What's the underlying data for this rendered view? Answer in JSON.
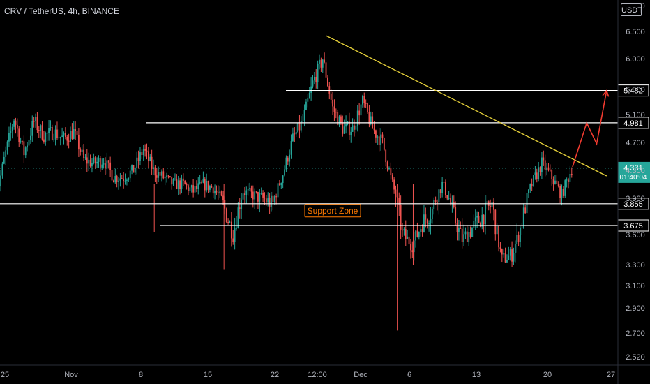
{
  "header": {
    "symbol_title": "CRV / TetherUS, 4h, BINANCE",
    "currency": "USDT"
  },
  "colors": {
    "background": "#000000",
    "up": "#26a69a",
    "down": "#ef5350",
    "trendline": "#e8d23a",
    "level_line": "#ffffff",
    "projection": "#f23b30",
    "support_zone_border": "#ff7a00",
    "price_badge": "#26a69a"
  },
  "chart_data": {
    "type": "candlestick",
    "instrument": "CRV / TetherUS",
    "timeframe": "4h",
    "exchange": "BINANCE",
    "price_axis": {
      "ticks": [
        "7.000",
        "6.500",
        "6.000",
        "5.500",
        "5.100",
        "4.700",
        "4.300",
        "3.900",
        "3.600",
        "3.300",
        "3.100",
        "2.900",
        "2.700",
        "2.520"
      ]
    },
    "time_axis": {
      "ticks": [
        "25",
        "Nov",
        "8",
        "15",
        "22",
        "12:00",
        "Dec",
        "6",
        "13",
        "20",
        "27"
      ]
    },
    "horizontal_levels": [
      {
        "value": 5.482,
        "label": "5.482"
      },
      {
        "value": 4.981,
        "label": "4.981"
      },
      {
        "value": 3.855,
        "label": "3.855"
      },
      {
        "value": 3.675,
        "label": "3.675"
      }
    ],
    "current_price": {
      "value": 4.331,
      "label": "4.331",
      "countdown": "01:40:04"
    },
    "annotations": [
      {
        "type": "label",
        "text": "Support Zone"
      },
      {
        "type": "trendline",
        "from": {
          "date": "Nov 26",
          "price": 6.42
        },
        "to": {
          "date": "Dec 24",
          "price": 4.22
        }
      },
      {
        "type": "projection",
        "path": [
          {
            "date": "Dec 21",
            "price": 4.35
          },
          {
            "date": "Dec 22",
            "price": 4.98
          },
          {
            "date": "Dec 23",
            "price": 4.68
          },
          {
            "date": "Dec 24",
            "price": 5.48
          }
        ]
      }
    ],
    "price_path": [
      {
        "date": "Oct 24",
        "price": 3.75
      },
      {
        "date": "Oct 25",
        "price": 4.45
      },
      {
        "date": "Oct 26",
        "price": 5.05
      },
      {
        "date": "Oct 27",
        "price": 4.55
      },
      {
        "date": "Oct 28",
        "price": 5.0
      },
      {
        "date": "Oct 29",
        "price": 4.8
      },
      {
        "date": "Oct 30",
        "price": 4.85
      },
      {
        "date": "Oct 31",
        "price": 4.75
      },
      {
        "date": "Nov 1",
        "price": 4.85
      },
      {
        "date": "Nov 2",
        "price": 4.45
      },
      {
        "date": "Nov 3",
        "price": 4.4
      },
      {
        "date": "Nov 4",
        "price": 4.45
      },
      {
        "date": "Nov 5",
        "price": 4.2
      },
      {
        "date": "Nov 6",
        "price": 4.2
      },
      {
        "date": "Nov 7",
        "price": 4.3
      },
      {
        "date": "Nov 8",
        "price": 4.6
      },
      {
        "date": "Nov 9",
        "price": 4.3
      },
      {
        "date": "Nov 10",
        "price": 4.2
      },
      {
        "date": "Nov 11",
        "price": 4.1
      },
      {
        "date": "Nov 12",
        "price": 4.1
      },
      {
        "date": "Nov 13",
        "price": 4.0
      },
      {
        "date": "Nov 14",
        "price": 4.1
      },
      {
        "date": "Nov 15",
        "price": 4.05
      },
      {
        "date": "Nov 16",
        "price": 3.85
      },
      {
        "date": "Nov 17",
        "price": 3.6
      },
      {
        "date": "Nov 18",
        "price": 4.0
      },
      {
        "date": "Nov 19",
        "price": 3.95
      },
      {
        "date": "Nov 20",
        "price": 3.9
      },
      {
        "date": "Nov 21",
        "price": 3.85
      },
      {
        "date": "Nov 22",
        "price": 4.25
      },
      {
        "date": "Nov 23",
        "price": 4.75
      },
      {
        "date": "Nov 24",
        "price": 5.0
      },
      {
        "date": "Nov 25",
        "price": 5.6
      },
      {
        "date": "Nov 26",
        "price": 6.0
      },
      {
        "date": "Nov 27",
        "price": 5.2
      },
      {
        "date": "Nov 28",
        "price": 4.9
      },
      {
        "date": "Nov 29",
        "price": 4.9
      },
      {
        "date": "Nov 30",
        "price": 5.3
      },
      {
        "date": "Dec 1",
        "price": 4.9
      },
      {
        "date": "Dec 2",
        "price": 4.7
      },
      {
        "date": "Dec 3",
        "price": 4.1
      },
      {
        "date": "Dec 4",
        "price": 3.6
      },
      {
        "date": "Dec 5",
        "price": 3.5
      },
      {
        "date": "Dec 6",
        "price": 3.7
      },
      {
        "date": "Dec 7",
        "price": 3.8
      },
      {
        "date": "Dec 8",
        "price": 4.1
      },
      {
        "date": "Dec 9",
        "price": 3.8
      },
      {
        "date": "Dec 10",
        "price": 3.55
      },
      {
        "date": "Dec 11",
        "price": 3.65
      },
      {
        "date": "Dec 12",
        "price": 3.75
      },
      {
        "date": "Dec 13",
        "price": 3.85
      },
      {
        "date": "Dec 14",
        "price": 3.35
      },
      {
        "date": "Dec 15",
        "price": 3.4
      },
      {
        "date": "Dec 16",
        "price": 3.7
      },
      {
        "date": "Dec 17",
        "price": 4.1
      },
      {
        "date": "Dec 18",
        "price": 4.4
      },
      {
        "date": "Dec 19",
        "price": 4.2
      },
      {
        "date": "Dec 20",
        "price": 3.95
      },
      {
        "date": "Dec 21",
        "price": 4.33
      }
    ]
  }
}
